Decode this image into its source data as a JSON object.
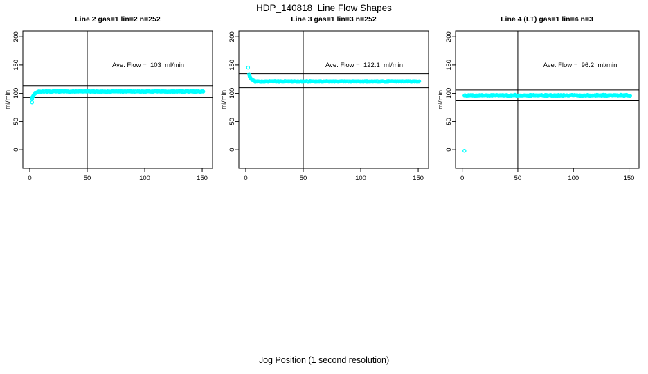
{
  "point_color": "#00FFFF",
  "axis_color": "#000000",
  "background_color": "#FFFFFF",
  "chart_data": {
    "type": "scatter",
    "title": "HDP_140818  Line Flow Shapes",
    "xlabel": "Jog Position (1 second resolution)",
    "ylabel": "ml/min",
    "xlim": [
      -6,
      159
    ],
    "ylim": [
      -33,
      210
    ],
    "xticks": [
      0,
      50,
      100,
      150
    ],
    "yticks": [
      0,
      50,
      100,
      150,
      200
    ],
    "grid": false,
    "legend": "none",
    "panels": [
      {
        "title": "Line 2 gas=1 lin=2 n=252",
        "annotation": "Ave. Flow =  103  ml/min",
        "ave_flow": 103,
        "n": 252,
        "vline_x": 50,
        "hlines": [
          113.3,
          92.7
        ],
        "outliers": [
          [
            2,
            84
          ]
        ],
        "transient": [
          [
            2,
            89.5
          ],
          [
            2,
            91
          ],
          [
            2.3,
            92.5
          ],
          [
            2.6,
            94
          ],
          [
            2.9,
            95.3
          ],
          [
            3.2,
            96.4
          ],
          [
            3.5,
            97.4
          ],
          [
            3.9,
            98.4
          ],
          [
            4.3,
            99.2
          ],
          [
            4.7,
            99.9
          ],
          [
            5.1,
            100.5
          ],
          [
            5.6,
            101.1
          ],
          [
            6.1,
            101.6
          ],
          [
            6.6,
            102
          ],
          [
            7.1,
            102.4
          ],
          [
            7.6,
            102.7
          ],
          [
            8.1,
            102.9
          ]
        ],
        "steady": {
          "x_start": 8,
          "x_end": 151,
          "value": 103.3,
          "jitter": 0.7,
          "n": 244
        },
        "seed": 7
      },
      {
        "title": "Line 3 gas=1 lin=3 n=252",
        "annotation": "Ave. Flow =  122.1  ml/min",
        "ave_flow": 122.1,
        "n": 252,
        "vline_x": 50,
        "hlines": [
          134.3,
          109.9
        ],
        "outliers": [
          [
            2,
            145.5
          ]
        ],
        "transient": [
          [
            3,
            133.8
          ],
          [
            3.2,
            131.5
          ],
          [
            3.4,
            129.8
          ],
          [
            3.7,
            128.4
          ],
          [
            4,
            127.3
          ],
          [
            4.3,
            126.4
          ],
          [
            4.7,
            125.5
          ],
          [
            5.1,
            124.8
          ],
          [
            5.5,
            124.2
          ],
          [
            6,
            123.6
          ],
          [
            6.5,
            123.1
          ],
          [
            7,
            122.7
          ],
          [
            7.5,
            122.3
          ],
          [
            8,
            122
          ]
        ],
        "steady": {
          "x_start": 8,
          "x_end": 151,
          "value": 121.2,
          "jitter": 0.7,
          "n": 240
        },
        "seed": 13
      },
      {
        "title": "Line 4 (LT) gas=1 lin=4 n=3",
        "annotation": "Ave. Flow =  96.2  ml/min",
        "ave_flow": 96.2,
        "n": 3,
        "vline_x": 50,
        "hlines": [
          105.8,
          86.6
        ],
        "outliers": [
          [
            2,
            -2
          ]
        ],
        "transient": [],
        "steady": {
          "x_start": 2,
          "x_end": 151,
          "value": 96.4,
          "jitter": 1.5,
          "n": 300
        },
        "seed": 21
      }
    ]
  }
}
